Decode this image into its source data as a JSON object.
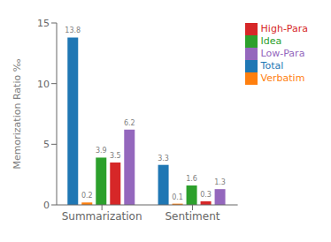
{
  "chart_data": {
    "type": "bar",
    "categories": [
      "Summarization",
      "Sentiment"
    ],
    "series": [
      {
        "name": "Total",
        "color": "#1f77b4",
        "values": [
          13.8,
          3.3
        ]
      },
      {
        "name": "Verbatim",
        "color": "#ff7f0e",
        "values": [
          0.2,
          0.1
        ]
      },
      {
        "name": "Idea",
        "color": "#2ca02c",
        "values": [
          3.9,
          1.6
        ]
      },
      {
        "name": "High-Para",
        "color": "#d62728",
        "values": [
          3.5,
          0.3
        ]
      },
      {
        "name": "Low-Para",
        "color": "#9467bd",
        "values": [
          6.2,
          1.3
        ]
      }
    ],
    "ylabel": "Memorization Ratio ‰",
    "ylim": [
      0,
      15
    ],
    "yticks": [
      0,
      5,
      10,
      15
    ],
    "data_labels": true,
    "legend": "upper right",
    "grid": false
  }
}
